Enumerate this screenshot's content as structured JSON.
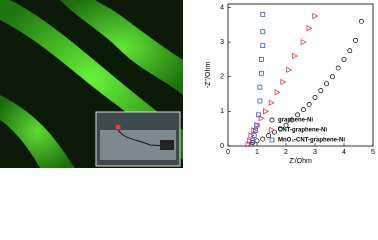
{
  "chart_data": {
    "type": "scatter",
    "xlabel": "Z'/Ohm",
    "ylabel": "-Z''/Ohm",
    "xlim": [
      0,
      5
    ],
    "xticks": [
      0,
      1,
      2,
      3,
      4,
      5
    ],
    "ylim": [
      0,
      4.1
    ],
    "yticks": [
      0,
      1,
      2,
      3,
      4
    ],
    "legend": "lower right",
    "series": [
      {
        "name": "graphene-Ni",
        "color": "#000000",
        "marker": "circle",
        "x": [
          0.85,
          1.0,
          1.2,
          1.4,
          1.6,
          1.8,
          2.0,
          2.2,
          2.4,
          2.6,
          2.8,
          3.0,
          3.2,
          3.4,
          3.6,
          3.8,
          4.0,
          4.2,
          4.4,
          4.6
        ],
        "values": [
          0.1,
          0.15,
          0.2,
          0.3,
          0.4,
          0.5,
          0.6,
          0.75,
          0.9,
          1.05,
          1.2,
          1.4,
          1.6,
          1.8,
          2.0,
          2.25,
          2.5,
          2.75,
          3.05,
          3.6
        ]
      },
      {
        "name": "CNT-graphene-Ni",
        "color": "#e8242b",
        "marker": "triangle",
        "x": [
          0.7,
          0.75,
          0.8,
          0.9,
          1.0,
          1.15,
          1.3,
          1.5,
          1.7,
          1.9,
          2.1,
          2.3,
          2.6,
          2.8,
          3.0
        ],
        "values": [
          0.05,
          0.15,
          0.3,
          0.45,
          0.6,
          0.8,
          1.0,
          1.25,
          1.55,
          1.85,
          2.2,
          2.6,
          3.0,
          3.4,
          3.75
        ]
      },
      {
        "name": "MnO₂-CNT-graphene-Ni",
        "color": "#1f3fd6",
        "marker": "square",
        "x": [
          0.8,
          0.85,
          0.9,
          0.95,
          1.0,
          1.05,
          1.1,
          1.1,
          1.15,
          1.15,
          1.2,
          1.2,
          1.2
        ],
        "values": [
          0.05,
          0.15,
          0.3,
          0.45,
          0.6,
          0.9,
          1.3,
          1.7,
          2.1,
          2.5,
          2.9,
          3.3,
          3.8
        ]
      }
    ]
  }
}
